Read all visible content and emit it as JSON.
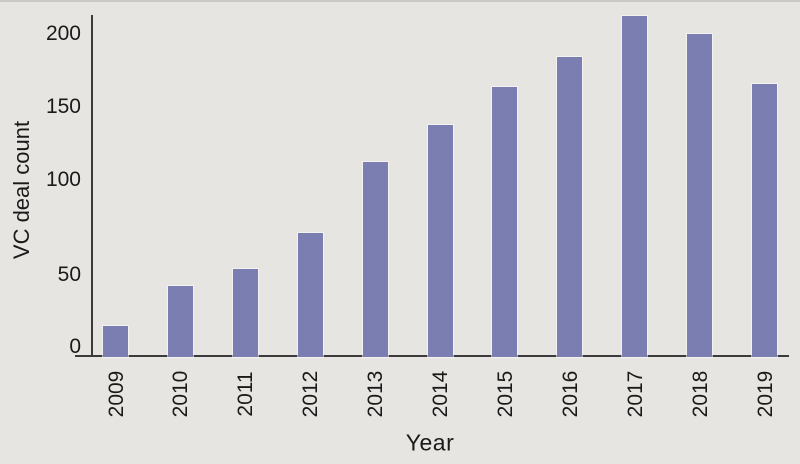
{
  "chart_data": {
    "type": "bar",
    "title": "",
    "xlabel": "Year",
    "ylabel": "VC deal count",
    "categories": [
      "2009",
      "2010",
      "2011",
      "2012",
      "2013",
      "2014",
      "2015",
      "2016",
      "2017",
      "2018",
      "2019"
    ],
    "values": [
      19,
      43,
      53,
      72,
      112,
      138,
      164,
      184,
      212,
      200,
      166
    ],
    "y_ticks": [
      0,
      50,
      100,
      150,
      200
    ],
    "ylim": [
      0,
      220
    ],
    "grid": "off",
    "legend": "none",
    "colors": {
      "bar": "#7b7eb0",
      "background": "#e7e5e1",
      "axis": "#3b3b3b",
      "text": "#1a1a1a"
    }
  }
}
